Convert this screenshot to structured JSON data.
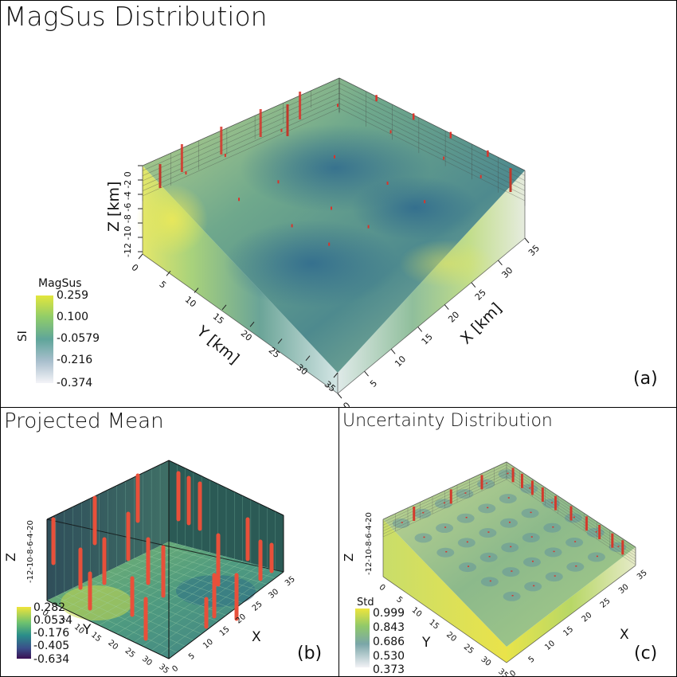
{
  "panels": {
    "a": {
      "title": "MagSus Distribution",
      "label": "(a)",
      "axes": {
        "x": "X [km]",
        "y": "Y [km]",
        "z": "Z [km]"
      },
      "colorbar": {
        "title": "MagSus",
        "unit": "SI",
        "ticks": [
          "0.259",
          "0.100",
          "-0.0579",
          "-0.216",
          "-0.374"
        ],
        "colormap": "viridis-fading-to-white"
      }
    },
    "b": {
      "title": "Projected Mean",
      "label": "(b)",
      "axes": {
        "x": "X",
        "y": "Y",
        "z": "Z"
      },
      "colorbar": {
        "ticks": [
          "0.282",
          "0.0534",
          "-0.176",
          "-0.405",
          "-0.634"
        ],
        "colormap": "viridis"
      }
    },
    "c": {
      "title": "Uncertainty Distribution",
      "label": "(c)",
      "axes": {
        "x": "X",
        "y": "Y",
        "z": "Z"
      },
      "colorbar": {
        "title": "Std",
        "ticks": [
          "0.999",
          "0.843",
          "0.686",
          "0.530",
          "0.373"
        ],
        "colormap": "viridis-fading-to-white"
      }
    }
  },
  "chart_data": [
    {
      "type": "heatmap",
      "title": "MagSus Distribution",
      "subtype": "3d-volume-rendering",
      "xlabel": "X [km]",
      "ylabel": "Y [km]",
      "zlabel": "Z [km]",
      "x_ticks": [
        0,
        5,
        10,
        15,
        20,
        25,
        30,
        35
      ],
      "y_ticks": [
        0,
        5,
        10,
        15,
        20,
        25,
        30,
        35
      ],
      "z_ticks": [
        -12,
        -10,
        -8,
        -6,
        -4,
        -2,
        0
      ],
      "xlim": [
        0,
        35
      ],
      "ylim": [
        0,
        35
      ],
      "zlim": [
        -12,
        0
      ],
      "colorbar": {
        "title": "MagSus",
        "unit": "SI",
        "range": [
          -0.374,
          0.259
        ],
        "ticks": [
          0.259,
          0.1,
          -0.0579,
          -0.216,
          -0.374
        ]
      },
      "boreholes": "red vertical wells at grid positions"
    },
    {
      "type": "heatmap",
      "title": "Projected Mean",
      "subtype": "3d-projection-with-boreholes",
      "xlabel": "X",
      "ylabel": "Y",
      "zlabel": "Z",
      "x_ticks": [
        0,
        5,
        10,
        15,
        20,
        25,
        30,
        35
      ],
      "y_ticks": [
        0,
        5,
        10,
        15,
        20,
        25,
        30,
        35
      ],
      "z_ticks": [
        -12,
        -10,
        -8,
        -6,
        -4,
        -2,
        0
      ],
      "xlim": [
        0,
        35
      ],
      "ylim": [
        0,
        35
      ],
      "zlim": [
        -12,
        0
      ],
      "colorbar": {
        "range": [
          -0.634,
          0.282
        ],
        "ticks": [
          0.282,
          0.0534,
          -0.176,
          -0.405,
          -0.634
        ]
      }
    },
    {
      "type": "heatmap",
      "title": "Uncertainty Distribution",
      "subtype": "3d-volume-rendering",
      "xlabel": "X",
      "ylabel": "Y",
      "zlabel": "Z",
      "x_ticks": [
        0,
        5,
        10,
        15,
        20,
        25,
        30,
        35
      ],
      "y_ticks": [
        0,
        5,
        10,
        15,
        20,
        25,
        30,
        35
      ],
      "z_ticks": [
        -12,
        -10,
        -8,
        -6,
        -4,
        -2,
        0
      ],
      "xlim": [
        0,
        35
      ],
      "ylim": [
        0,
        35
      ],
      "zlim": [
        -12,
        0
      ],
      "colorbar": {
        "title": "Std",
        "range": [
          0.373,
          0.999
        ],
        "ticks": [
          0.999,
          0.843,
          0.686,
          0.53,
          0.373
        ]
      }
    }
  ]
}
